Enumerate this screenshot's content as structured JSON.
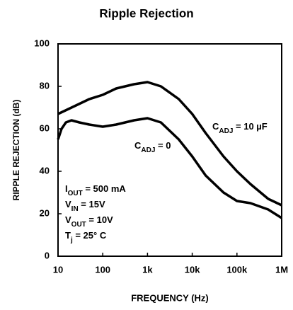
{
  "chart_data": {
    "type": "line",
    "title": "Ripple Rejection",
    "xlabel": "FREQUENCY (Hz)",
    "ylabel": "RIPPLE REJECTION (dB)",
    "xscale": "log",
    "xlim": [
      10,
      1000000
    ],
    "xticks": [
      10,
      100,
      {
        "value": 1000,
        "label": "1k"
      },
      {
        "value": 10000,
        "label": "10k"
      },
      {
        "value": 100000,
        "label": "100k"
      },
      {
        "value": 1000000,
        "label": "1M"
      }
    ],
    "ylim": [
      0,
      100
    ],
    "yticks": [
      0,
      20,
      40,
      60,
      80,
      100
    ],
    "grid": false,
    "series": [
      {
        "color": "#000000",
        "label": {
          "main": "C",
          "sub": "ADJ",
          "tail": " = 10 µF"
        },
        "x": [
          10,
          20,
          50,
          100,
          200,
          500,
          1000,
          2000,
          5000,
          10000,
          20000,
          50000,
          100000,
          200000,
          500000,
          1000000
        ],
        "values": [
          67,
          70,
          74,
          76,
          79,
          81,
          82,
          80,
          74,
          67,
          58,
          47,
          40,
          34,
          27,
          24
        ]
      },
      {
        "color": "#000000",
        "label": {
          "main": "C",
          "sub": "ADJ",
          "tail": " = 0"
        },
        "x": [
          10,
          12,
          15,
          20,
          30,
          50,
          100,
          200,
          500,
          1000,
          2000,
          5000,
          10000,
          20000,
          50000,
          100000,
          200000,
          500000,
          1000000
        ],
        "values": [
          55,
          60,
          63,
          64,
          63,
          62,
          61,
          62,
          64,
          65,
          63,
          55,
          47,
          38,
          30,
          26,
          25,
          22,
          18
        ]
      }
    ],
    "annotations": [
      {
        "main": "I",
        "sub": "OUT",
        "tail": " = 500 mA"
      },
      {
        "main": "V",
        "sub": "IN",
        "tail": " = 15V"
      },
      {
        "main": "V",
        "sub": "OUT",
        "tail": " = 10V"
      },
      {
        "main": "T",
        "sub": "j",
        "tail": " = 25° C"
      }
    ]
  }
}
